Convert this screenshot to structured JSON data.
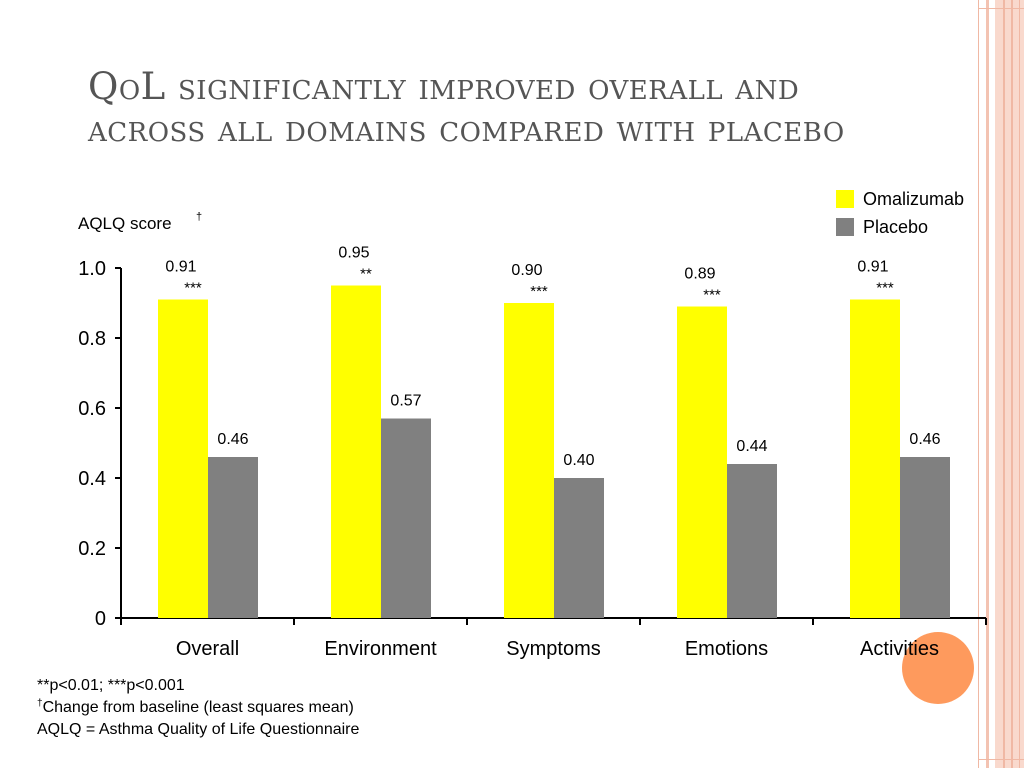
{
  "title": "QoL significantly improved overall and across all domains compared with placebo",
  "chart_data": {
    "type": "bar",
    "categories": [
      "Overall",
      "Environment",
      "Symptoms",
      "Emotions",
      "Activities"
    ],
    "series": [
      {
        "name": "Omalizumab",
        "color": "#ffff00",
        "values": [
          0.91,
          0.95,
          0.9,
          0.89,
          0.91
        ],
        "labels": [
          "0.91",
          "0.95",
          "0.90",
          "0.89",
          "0.91"
        ],
        "significance": [
          "***",
          "**",
          "***",
          "***",
          "***"
        ]
      },
      {
        "name": "Placebo",
        "color": "#808080",
        "values": [
          0.46,
          0.57,
          0.4,
          0.44,
          0.46
        ],
        "labels": [
          "0.46",
          "0.57",
          "0.40",
          "0.44",
          "0.46"
        ]
      }
    ],
    "ylabel": "AQLQ score",
    "ylabel_mark": "†",
    "ylim": [
      0,
      1.0
    ],
    "yticks": [
      {
        "value": 0,
        "label": "0"
      },
      {
        "value": 0.2,
        "label": "0.2"
      },
      {
        "value": 0.4,
        "label": "0.4"
      },
      {
        "value": 0.6,
        "label": "0.6"
      },
      {
        "value": 0.8,
        "label": "0.8"
      },
      {
        "value": 1.0,
        "label": "1.0"
      }
    ],
    "legend_position": "top-right",
    "grid": false
  },
  "footnotes": {
    "significance": "**p<0.01; ***p<0.001",
    "dagger_mark": "†",
    "dagger_text": "Change from baseline (least squares mean)",
    "abbreviation": "AQLQ = Asthma Quality of Life Questionnaire"
  }
}
